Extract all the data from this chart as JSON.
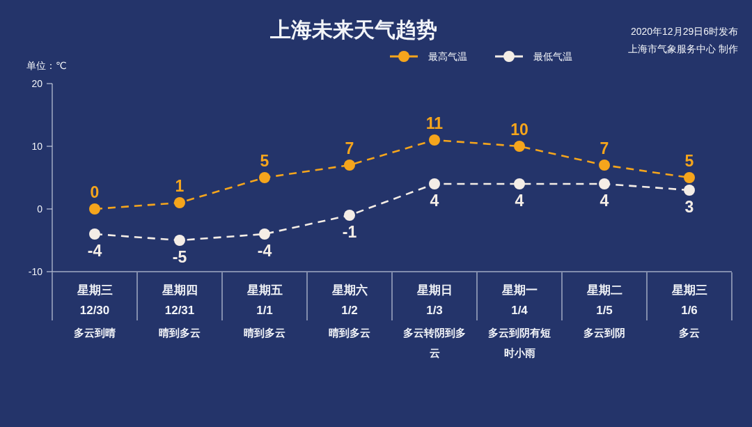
{
  "chart_data": {
    "type": "line",
    "title": "上海未来天气趋势",
    "ylabel": "单位：℃",
    "annotations": [
      "2020年12月29日6时发布",
      "上海市气象服务中心 制作"
    ],
    "categories": [
      "星期三\n12/30\n多云到晴",
      "星期四\n12/31\n晴到多云",
      "星期五\n1/1\n晴到多云",
      "星期六\n1/2\n晴到多云",
      "星期日\n1/3\n多云转阴到多云",
      "星期一\n1/4\n多云到阴有短时小雨",
      "星期二\n1/5\n多云到阴",
      "星期三\n1/6\n多云"
    ],
    "series": [
      {
        "name": "最高气温",
        "color": "#f5a51c",
        "values": [
          0,
          1,
          5,
          7,
          11,
          10,
          7,
          5
        ]
      },
      {
        "name": "最低气温",
        "color": "#f4ede6",
        "values": [
          -4,
          -5,
          -4,
          -1,
          4,
          4,
          4,
          3
        ]
      }
    ],
    "ylim": [
      -10,
      20
    ],
    "yticks": [
      -10,
      0,
      10,
      20
    ],
    "grid": false,
    "legend": "top",
    "marker": "circle",
    "line_style": "dashed",
    "data_labels": true
  }
}
